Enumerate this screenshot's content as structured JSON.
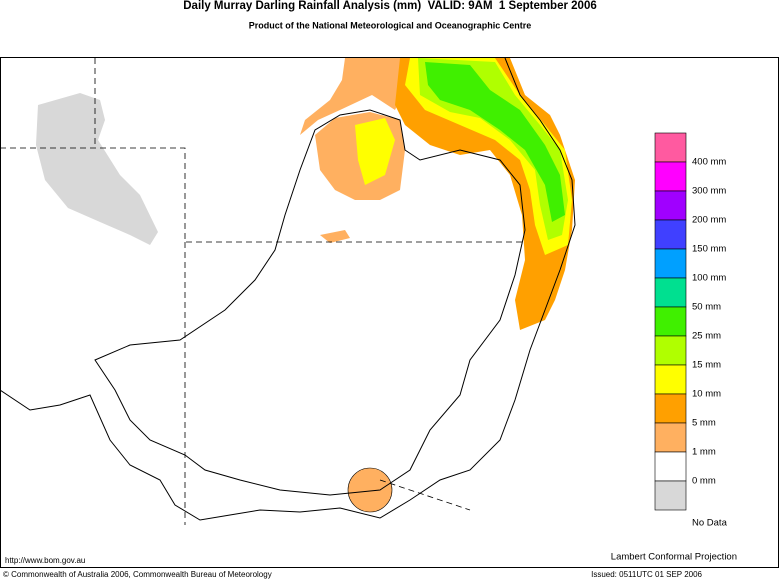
{
  "header": {
    "title": "Daily Murray Darling Rainfall Analysis (mm)  VALID: 9AM  1 September 2006",
    "subtitle": "Product of the National Meteorological and Oceanographic Centre"
  },
  "legend": {
    "colors": [
      "#ff5aa0",
      "#ff00ff",
      "#a000ff",
      "#4040ff",
      "#00a0ff",
      "#00e090",
      "#40f000",
      "#b0ff00",
      "#ffff00",
      "#ffa000",
      "#ffb060",
      "#ffffff",
      "#d8d8d8"
    ],
    "labels": [
      "400 mm",
      "300 mm",
      "200 mm",
      "150 mm",
      "100 mm",
      "50 mm",
      "25 mm",
      "15 mm",
      "10 mm",
      "5 mm",
      "1 mm",
      "0 mm",
      "No Data"
    ]
  },
  "footer": {
    "url": "http://www.bom.gov.au",
    "projection": "Lambert Conformal Projection",
    "copyright": "© Commonwealth of Australia 2006, Commonwealth Bureau of Meteorology",
    "issued": "Issued: 0511UTC 01 SEP 2006"
  }
}
